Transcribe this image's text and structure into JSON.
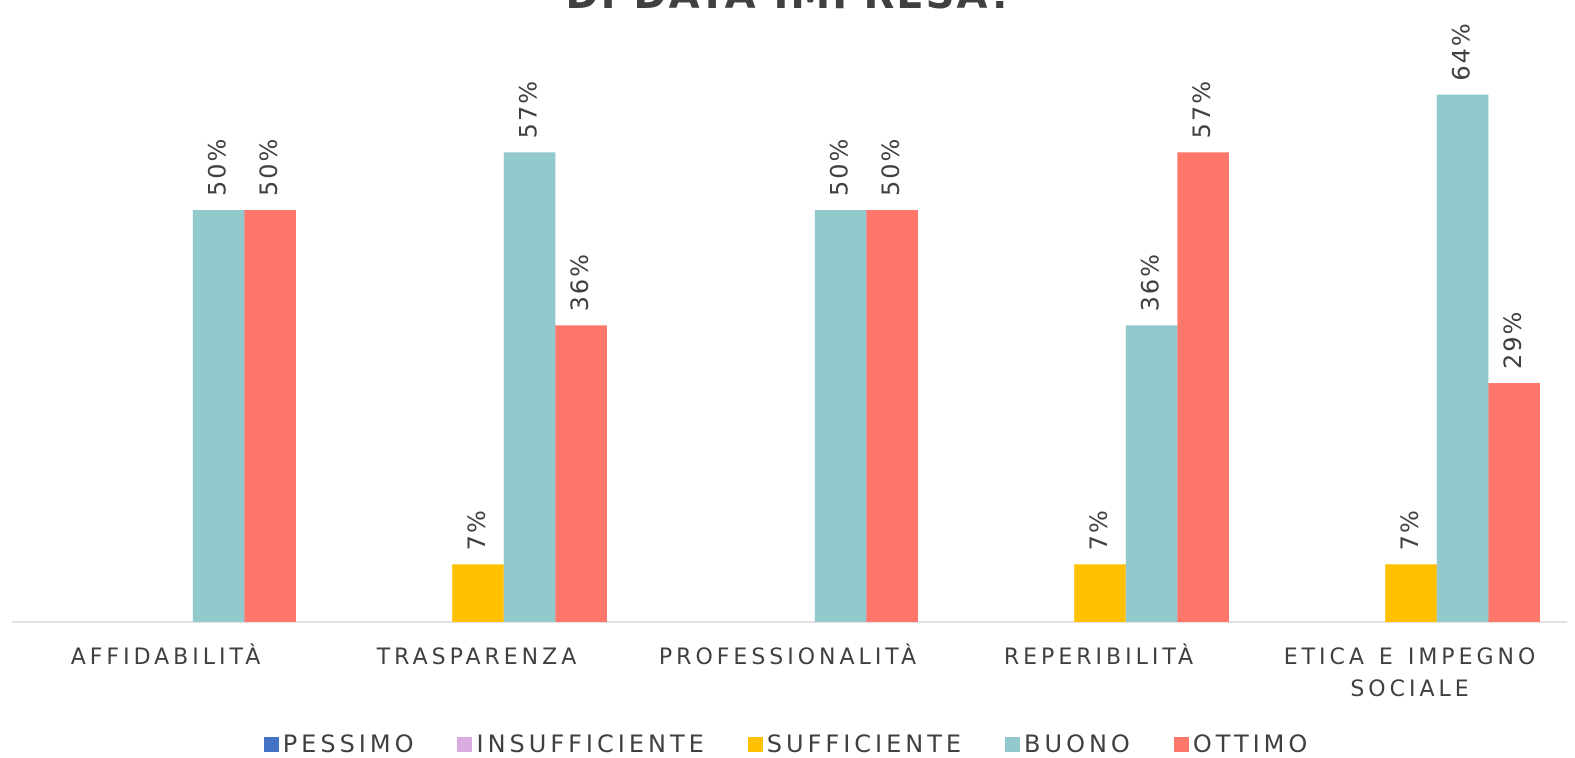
{
  "chart_data": {
    "type": "bar",
    "title": "DI DATA IMPRESA?",
    "categories": [
      "AFFIDABILITÀ",
      "TRASPARENZA",
      "PROFESSIONALITÀ",
      "REPERIBILITÀ",
      "ETICA E IMPEGNO SOCIALE"
    ],
    "series": [
      {
        "name": "PESSIMO",
        "color": "#4472c4",
        "values": [
          null,
          null,
          null,
          null,
          null
        ],
        "value_labels": [
          null,
          null,
          null,
          null,
          null
        ]
      },
      {
        "name": "INSUFFICIENTE",
        "color": "#d9acdf",
        "values": [
          null,
          null,
          null,
          null,
          null
        ],
        "value_labels": [
          null,
          null,
          null,
          null,
          null
        ]
      },
      {
        "name": "SUFFICIENTE",
        "color": "#ffc000",
        "values": [
          null,
          7,
          null,
          7,
          7
        ],
        "value_labels": [
          null,
          "7%",
          null,
          "7%",
          "7%"
        ]
      },
      {
        "name": "BUONO",
        "color": "#92c9cd",
        "values": [
          50,
          57,
          50,
          36,
          64
        ],
        "value_labels": [
          "50%",
          "57%",
          "50%",
          "36%",
          "64%"
        ]
      },
      {
        "name": "OTTIMO",
        "color": "#ff766a",
        "values": [
          50,
          36,
          50,
          57,
          29
        ],
        "value_labels": [
          "50%",
          "36%",
          "50%",
          "57%",
          "29%"
        ]
      }
    ]
  }
}
